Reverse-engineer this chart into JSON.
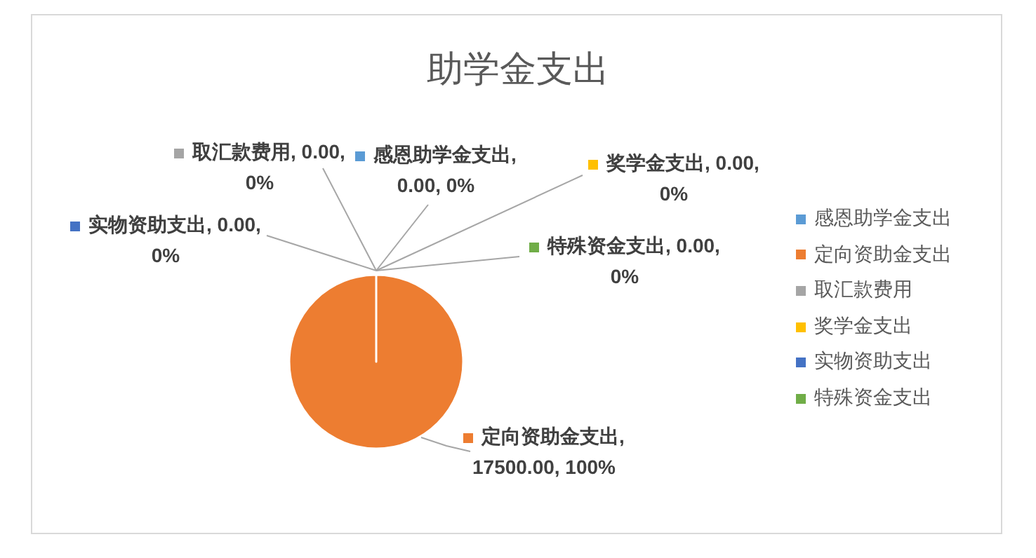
{
  "chart_data": {
    "type": "pie",
    "title": "助学金支出",
    "categories": [
      "感恩助学金支出",
      "定向资助金支出",
      "取汇款费用",
      "奖学金支出",
      "实物资助支出",
      "特殊资金支出"
    ],
    "values": [
      0,
      17500,
      0,
      0,
      0,
      0
    ],
    "colors": [
      "#5b9bd5",
      "#ed7d31",
      "#a5a5a5",
      "#ffc000",
      "#4472c4",
      "#70ad47"
    ],
    "value_labels": [
      "感恩助学金支出, 0.00, 0%",
      "定向资助金支出, 17500.00, 100%",
      "取汇款费用, 0.00, 0%",
      "奖学金支出, 0.00, 0%",
      "实物资助支出, 0.00, 0%",
      "特殊资金支出, 0.00, 0%"
    ],
    "legend": "right"
  }
}
